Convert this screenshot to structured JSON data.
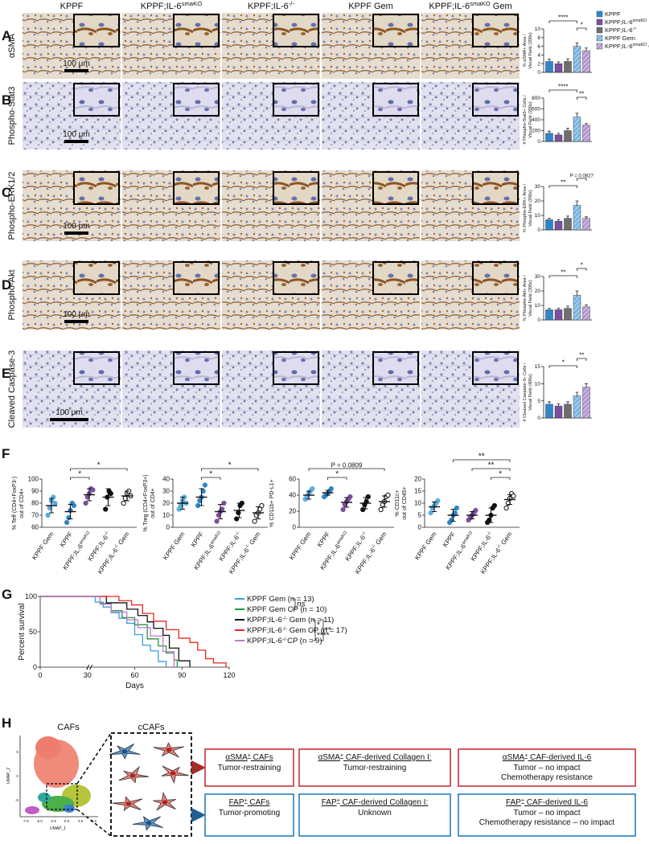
{
  "figure": {
    "panel_letters": [
      "A",
      "B",
      "C",
      "D",
      "E",
      "F",
      "G",
      "H"
    ],
    "columns": [
      "KPPF",
      [
        "KPPF;IL-6",
        "smaKO"
      ],
      [
        "KPPF;IL-6",
        "-/-"
      ],
      "KPPF Gem",
      [
        "KPPF;IL-6",
        "smaKO",
        " Gem"
      ]
    ],
    "rows": [
      "αSMA",
      "Phospho-Stat3",
      "Phospho-ERK1/2",
      "Phospho-Akt",
      "Cleaved Caspase-3"
    ],
    "scale_bar": "100 μm"
  },
  "legend": {
    "names": [
      "KPPF",
      [
        "KPPF;IL-6",
        "smaKO"
      ],
      [
        "KPPF;IL-6",
        "-/-"
      ],
      "KPPF Gem",
      [
        "KPPF;IL-6",
        "smaKO",
        " Gem"
      ]
    ],
    "colors": [
      "#2f86c9",
      "#7e4fa0",
      "#6e6e6e",
      "#9cc8ea",
      "#c7b3e0"
    ],
    "hatched": [
      false,
      false,
      false,
      true,
      true
    ]
  },
  "chart_data": [
    {
      "type": "bar",
      "ylabel": [
        "% αSMA+ Area /",
        "Visual Field (200x)"
      ],
      "values": [
        2.5,
        2,
        2.5,
        6,
        5
      ],
      "errors": [
        0.5,
        0.4,
        0.6,
        0.8,
        0.6
      ],
      "ylim": [
        0,
        10
      ],
      "yticks": [
        0,
        2,
        4,
        6,
        8,
        10
      ],
      "annotations": [
        {
          "text": "*",
          "groups": [
            3,
            4
          ]
        },
        {
          "text": "****",
          "groups": [
            0,
            3
          ]
        }
      ]
    },
    {
      "type": "bar",
      "ylabel": [
        "# Phospho-Stat3+ Cells /",
        "Visual Field (200x)"
      ],
      "values": [
        150,
        120,
        200,
        450,
        300
      ],
      "errors": [
        40,
        30,
        40,
        70,
        30
      ],
      "ylim": [
        0,
        800
      ],
      "yticks": [
        0,
        200,
        400,
        600,
        800
      ],
      "annotations": [
        {
          "text": "**",
          "groups": [
            3,
            4
          ]
        },
        {
          "text": "****",
          "groups": [
            0,
            3
          ]
        }
      ]
    },
    {
      "type": "bar",
      "ylabel": [
        "% Phospho-ERK+ Area /",
        "Visual Field (200x)"
      ],
      "values": [
        7,
        6,
        8,
        17,
        8
      ],
      "errors": [
        1,
        1,
        1.5,
        3,
        1
      ],
      "ylim": [
        0,
        30
      ],
      "yticks": [
        0,
        10,
        20,
        30
      ],
      "annotations": [
        {
          "text": "**",
          "groups": [
            0,
            3
          ]
        },
        {
          "text": "P = 0.0827",
          "groups": [
            3,
            4
          ]
        }
      ]
    },
    {
      "type": "bar",
      "ylabel": [
        "% Phospho-Akt+ Area /",
        "Visual Field (200x)"
      ],
      "values": [
        7,
        7,
        8,
        17,
        9
      ],
      "errors": [
        1,
        1,
        1.5,
        3,
        1.5
      ],
      "ylim": [
        0,
        30
      ],
      "yticks": [
        0,
        10,
        20,
        30
      ],
      "annotations": [
        {
          "text": "**",
          "groups": [
            0,
            3
          ]
        },
        {
          "text": "*",
          "groups": [
            3,
            4
          ]
        }
      ]
    },
    {
      "type": "bar",
      "ylabel": [
        "# Cleaved Caspase-3+ Cells /",
        "Visual Field (400x)"
      ],
      "values": [
        4,
        3.5,
        4,
        6.5,
        9
      ],
      "errors": [
        0.7,
        0.6,
        0.7,
        1,
        1
      ],
      "ylim": [
        0,
        15
      ],
      "yticks": [
        0,
        5,
        10,
        15
      ],
      "annotations": [
        {
          "text": "*",
          "groups": [
            0,
            3
          ]
        },
        {
          "text": "**",
          "groups": [
            3,
            4
          ]
        }
      ]
    },
    {
      "type": "dot",
      "ylabel": [
        "% Teff (CD4+FoxP3-)",
        "out of CD4+"
      ],
      "categories": [
        "KPPF Gem",
        "KPPF",
        [
          "KPPF;IL-6",
          "smaKO"
        ],
        [
          "KPPF;IL-6",
          "-/-"
        ],
        [
          "KPPF;IL-6",
          "-/-",
          " Gem"
        ]
      ],
      "colors": [
        "#5aaee0",
        "#2f86c9",
        "#7e4fa0",
        "#111111",
        "#111111"
      ],
      "points": [
        [
          70,
          76,
          82,
          85,
          80
        ],
        [
          64,
          68,
          74,
          80,
          78
        ],
        [
          80,
          85,
          88,
          92,
          91
        ],
        [
          75,
          85,
          90,
          88
        ],
        [
          80,
          84,
          88,
          90,
          86
        ]
      ],
      "means": [
        78,
        73,
        87,
        85,
        86
      ],
      "sd": [
        6,
        6,
        5,
        7,
        4
      ],
      "ylim": [
        60,
        100
      ],
      "yticks": [
        60,
        70,
        80,
        90,
        100
      ],
      "annotations": [
        {
          "text": "*",
          "groups": [
            1,
            2
          ]
        },
        {
          "text": "*",
          "groups": [
            1,
            4
          ]
        }
      ]
    },
    {
      "type": "dot",
      "ylabel": [
        "% Treg (CD4+FoxP3+)",
        "out of CD4+"
      ],
      "categories": [
        "KPPF Gem",
        "KPPF",
        [
          "KPPF;IL-6",
          "smaKO"
        ],
        [
          "KPPF;IL-6",
          "-/-"
        ],
        [
          "KPPF;IL-6",
          "-/-",
          " Gem"
        ]
      ],
      "colors": [
        "#5aaee0",
        "#2f86c9",
        "#7e4fa0",
        "#111111",
        "#111111"
      ],
      "points": [
        [
          15,
          18,
          22,
          25,
          20
        ],
        [
          18,
          22,
          25,
          30,
          35
        ],
        [
          5,
          10,
          13,
          15,
          20
        ],
        [
          7,
          12,
          18,
          20
        ],
        [
          5,
          10,
          12,
          15,
          18
        ]
      ],
      "means": [
        20,
        25,
        13,
        14,
        12
      ],
      "sd": [
        5,
        7,
        6,
        6,
        5
      ],
      "ylim": [
        0,
        40
      ],
      "yticks": [
        0,
        10,
        20,
        30,
        40
      ],
      "annotations": [
        {
          "text": "*",
          "groups": [
            1,
            2
          ]
        },
        {
          "text": "*",
          "groups": [
            1,
            4
          ]
        }
      ]
    },
    {
      "type": "dot",
      "ylabel": [
        "% CD11b+ PD-L1+"
      ],
      "categories": [
        "KPPF Gem",
        "KPPF",
        [
          "KPPF;IL-6",
          "smaKO"
        ],
        [
          "KPPF;IL-6",
          "-/-"
        ],
        [
          "KPPF;IL-6",
          "-/-",
          " Gem"
        ]
      ],
      "colors": [
        "#5aaee0",
        "#2f86c9",
        "#7e4fa0",
        "#111111",
        "#111111"
      ],
      "points": [
        [
          35,
          38,
          42,
          45,
          48
        ],
        [
          38,
          40,
          42,
          45,
          48
        ],
        [
          22,
          28,
          32,
          35,
          38
        ],
        [
          22,
          28,
          32,
          38
        ],
        [
          22,
          28,
          32,
          38,
          40
        ]
      ],
      "means": [
        40,
        43,
        31,
        30,
        32
      ],
      "sd": [
        5,
        3,
        6,
        7,
        7
      ],
      "ylim": [
        0,
        60
      ],
      "yticks": [
        0,
        20,
        40,
        60
      ],
      "annotations": [
        {
          "text": "*",
          "groups": [
            1,
            2
          ]
        },
        {
          "text": "P = 0.0809",
          "groups": [
            0,
            4
          ]
        }
      ]
    },
    {
      "type": "dot",
      "ylabel": [
        "% CD11c+",
        "out of CD45+"
      ],
      "categories": [
        "KPPF Gem",
        "KPPF",
        [
          "KPPF;IL-6",
          "smaKO"
        ],
        [
          "KPPF;IL-6",
          "-/-"
        ],
        [
          "KPPF;IL-6",
          "-/-",
          " Gem"
        ]
      ],
      "colors": [
        "#5aaee0",
        "#2f86c9",
        "#7e4fa0",
        "#111111",
        "#111111"
      ],
      "points": [
        [
          6,
          8,
          9,
          10,
          11
        ],
        [
          2,
          3,
          5,
          6,
          8
        ],
        [
          3,
          4,
          5,
          6,
          7
        ],
        [
          2,
          3,
          5,
          8,
          9
        ],
        [
          8,
          10,
          12,
          14,
          13
        ]
      ],
      "means": [
        8.5,
        5,
        5,
        5,
        11.5
      ],
      "sd": [
        2,
        2.5,
        1.5,
        3,
        2
      ],
      "ylim": [
        0,
        20
      ],
      "yticks": [
        0,
        5,
        10,
        15,
        20
      ],
      "annotations": [
        {
          "text": "*",
          "groups": [
            3,
            4
          ]
        },
        {
          "text": "**",
          "groups": [
            2,
            4
          ]
        },
        {
          "text": "**",
          "groups": [
            1,
            4
          ]
        }
      ]
    },
    {
      "type": "survival",
      "xlabel": "Days",
      "ylabel": "Percent survival",
      "xlim": [
        0,
        120
      ],
      "xticks": [
        0,
        30,
        60,
        90,
        120
      ],
      "ylim": [
        0,
        100
      ],
      "yticks": [
        0,
        50,
        100
      ],
      "series": [
        {
          "name": [
            "KPPF Gem (n = 13)"
          ],
          "color": "#3e9fdc",
          "x": [
            0,
            35,
            40,
            45,
            50,
            55,
            60,
            65,
            70,
            75,
            80
          ],
          "values": [
            100,
            92,
            85,
            77,
            69,
            62,
            46,
            31,
            23,
            8,
            0
          ]
        },
        {
          "name": [
            "KPPF Gem CP (n = 10)"
          ],
          "color": "#22944a",
          "x": [
            0,
            38,
            45,
            52,
            60,
            68,
            75,
            80,
            85,
            87
          ],
          "values": [
            100,
            90,
            80,
            70,
            60,
            40,
            30,
            20,
            10,
            0
          ]
        },
        {
          "name": [
            "KPPF;IL-6",
            "-/-",
            " Gem (n = 11)"
          ],
          "color": "#111111",
          "x": [
            0,
            42,
            55,
            62,
            68,
            72,
            78,
            82,
            88,
            95
          ],
          "values": [
            100,
            91,
            82,
            73,
            64,
            55,
            45,
            27,
            9,
            0
          ]
        },
        {
          "name": [
            "KPPF;IL-6",
            "-/-",
            " Gem CP (n = 17)"
          ],
          "color": "#e8281e",
          "x": [
            0,
            50,
            58,
            65,
            72,
            80,
            88,
            95,
            100,
            105,
            110,
            118
          ],
          "values": [
            100,
            94,
            88,
            76,
            65,
            53,
            41,
            35,
            24,
            12,
            6,
            0
          ]
        },
        {
          "name": [
            "KPPF;IL-6",
            "-/-",
            "CP (n = 9)"
          ],
          "color": "#c776c9",
          "x": [
            0,
            38,
            45,
            55,
            62,
            70,
            78,
            85
          ],
          "values": [
            100,
            89,
            78,
            67,
            56,
            44,
            22,
            0
          ]
        }
      ],
      "annotations": [
        {
          "text": "ns",
          "groups": [
            0,
            1
          ]
        },
        {
          "text": "*",
          "groups": [
            2,
            3
          ]
        },
        {
          "text": "****",
          "groups": [
            3,
            4
          ]
        },
        {
          "text": "**",
          "groups": [
            2,
            4
          ]
        }
      ]
    }
  ],
  "diagram": {
    "umap_title": "CAFs",
    "zoom_title": "cCAFs",
    "umap_x": "UMAP_1",
    "umap_y": "UMAP_2",
    "umap_xticks": [
      "-7.5",
      "-5.0",
      "-2.5",
      "0.0",
      "2.5",
      "5.0"
    ],
    "umap_yticks": [
      "5",
      "0",
      "-5"
    ],
    "boxes": [
      {
        "title": [
          "αSMA",
          "+",
          " CAFs"
        ],
        "lines": [
          "Tumor-restraining"
        ],
        "color": "#c8323c"
      },
      {
        "title": [
          "αSMA",
          "+",
          " CAF-derived Collagen I:"
        ],
        "lines": [
          "Tumor-restraining"
        ],
        "color": "#c8323c"
      },
      {
        "title": [
          "αSMA",
          "+",
          " CAF-derived IL-6"
        ],
        "lines": [
          "Tumor – no impact",
          "Chemotherapy resistance"
        ],
        "color": "#c8323c"
      },
      {
        "title": [
          "FAP",
          "+",
          " CAFs"
        ],
        "lines": [
          "Tumor-promoting"
        ],
        "color": "#2a7fc0"
      },
      {
        "title": [
          "FAP",
          "+",
          " CAF-derived Collagen I:"
        ],
        "lines": [
          "Unknown"
        ],
        "color": "#2a7fc0"
      },
      {
        "title": [
          "FAP",
          "+",
          " CAF-derived IL-6"
        ],
        "lines": [
          "Tumor – no impact",
          "Chemotherapy resistance – no impact"
        ],
        "color": "#2a7fc0"
      }
    ]
  }
}
